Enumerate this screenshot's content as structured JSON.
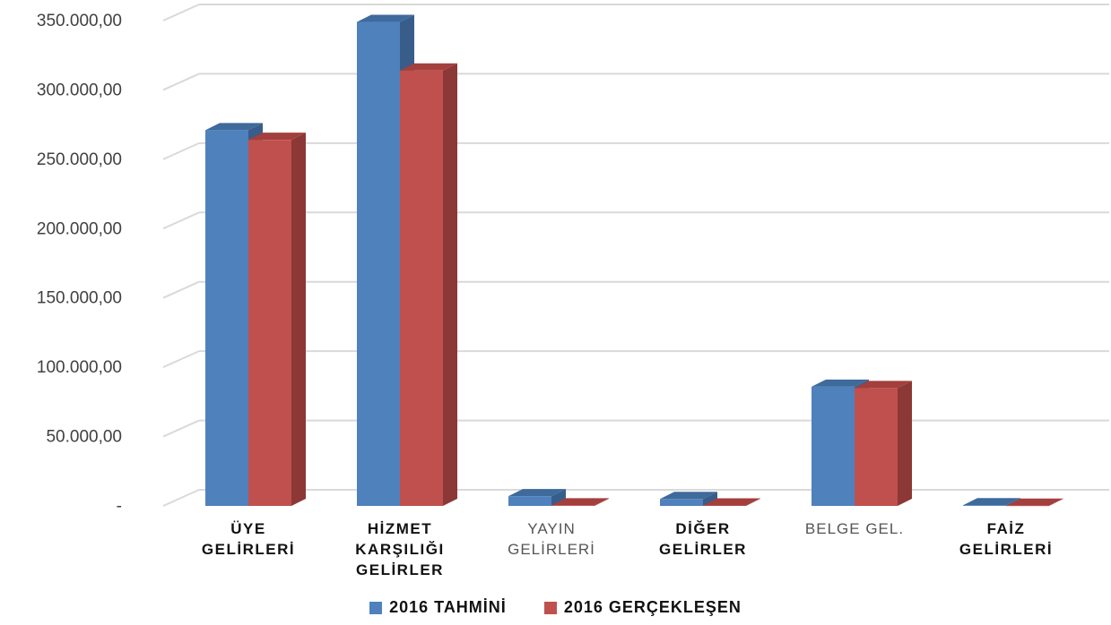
{
  "chart_data": {
    "type": "bar",
    "categories": [
      [
        "ÜYE",
        "GELİRLERİ"
      ],
      [
        "HİZMET",
        "KARŞILIĞI",
        "GELİRLER"
      ],
      [
        "YAYIN",
        "GELİRLERİ"
      ],
      [
        "DİĞER",
        "GELİRLER"
      ],
      [
        "BELGE GEL."
      ],
      [
        "FAİZ",
        "GELİRLERİ"
      ]
    ],
    "category_styles": [
      "bold",
      "bold",
      "light",
      "bold",
      "light",
      "bold"
    ],
    "series": [
      {
        "name": "2016 TAHMİNİ",
        "values": [
          271000,
          349000,
          7000,
          5000,
          86000,
          500
        ],
        "color": "#4F81BD",
        "top_color": "#3E6A9C",
        "side_color": "#385D8A"
      },
      {
        "name": "2016 GERÇEKLEŞEN",
        "values": [
          264000,
          314000,
          400,
          300,
          85000,
          200
        ],
        "color": "#C0504D",
        "top_color": "#A33F3C",
        "side_color": "#8C3836"
      }
    ],
    "yticks": [
      {
        "value": 0,
        "label": "-"
      },
      {
        "value": 50000,
        "label": "50.000,00"
      },
      {
        "value": 100000,
        "label": "100.000,00"
      },
      {
        "value": 150000,
        "label": "150.000,00"
      },
      {
        "value": 200000,
        "label": "200.000,00"
      },
      {
        "value": 250000,
        "label": "250.000,00"
      },
      {
        "value": 300000,
        "label": "300.000,00"
      },
      {
        "value": 350000,
        "label": "350.000,00"
      }
    ],
    "ylim": [
      0,
      350000
    ],
    "grid": true,
    "legend_position": "bottom"
  }
}
